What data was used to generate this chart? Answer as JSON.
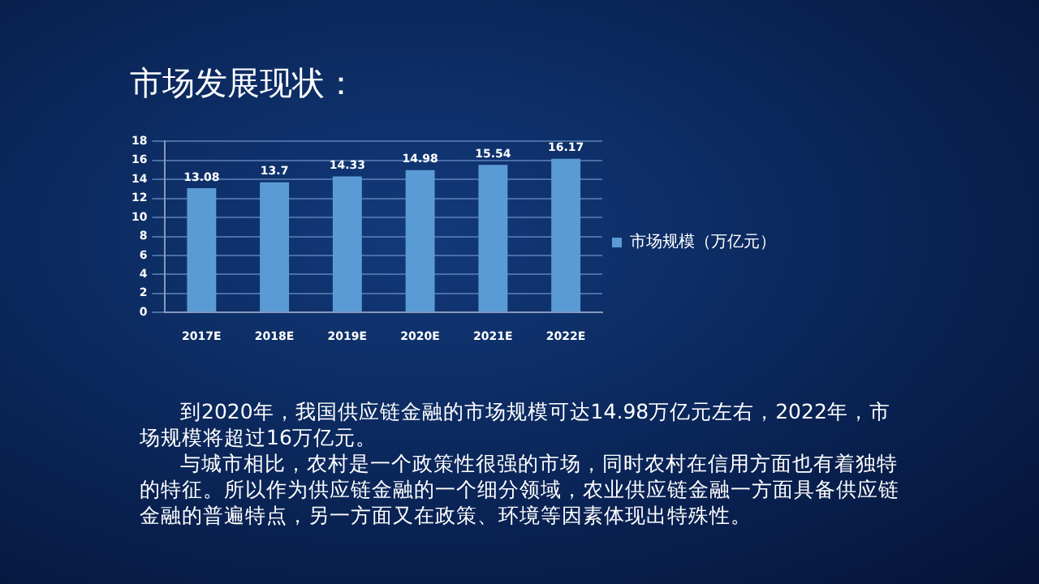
{
  "chart_data": {
    "type": "bar",
    "title": "市场发展现状：",
    "categories": [
      "2017E",
      "2018E",
      "2019E",
      "2020E",
      "2021E",
      "2022E"
    ],
    "series": [
      {
        "name": "市场规模（万亿元）",
        "color": "#5b9bd5",
        "values": [
          13.08,
          13.7,
          14.33,
          14.98,
          15.54,
          16.17
        ]
      }
    ],
    "ylim": [
      0,
      18
    ],
    "yticks": [
      0,
      2,
      4,
      6,
      8,
      10,
      12,
      14,
      16,
      18
    ],
    "grid": "y",
    "legend": "right",
    "data_labels": true,
    "annotations": [
      "到2020年，我国供应链金融的市场规模可达14.98万亿元左右，2022年，市场规模将超过16万亿元。",
      "与城市相比，农村是一个政策性很强的市场，同时农村在信用方面也有着独特的特征。所以作为供应链金融的一个细分领域，农业供应链金融一方面具备供应链金融的普遍特点，另一方面又在政策、环境等因素体现出特殊性。"
    ]
  }
}
